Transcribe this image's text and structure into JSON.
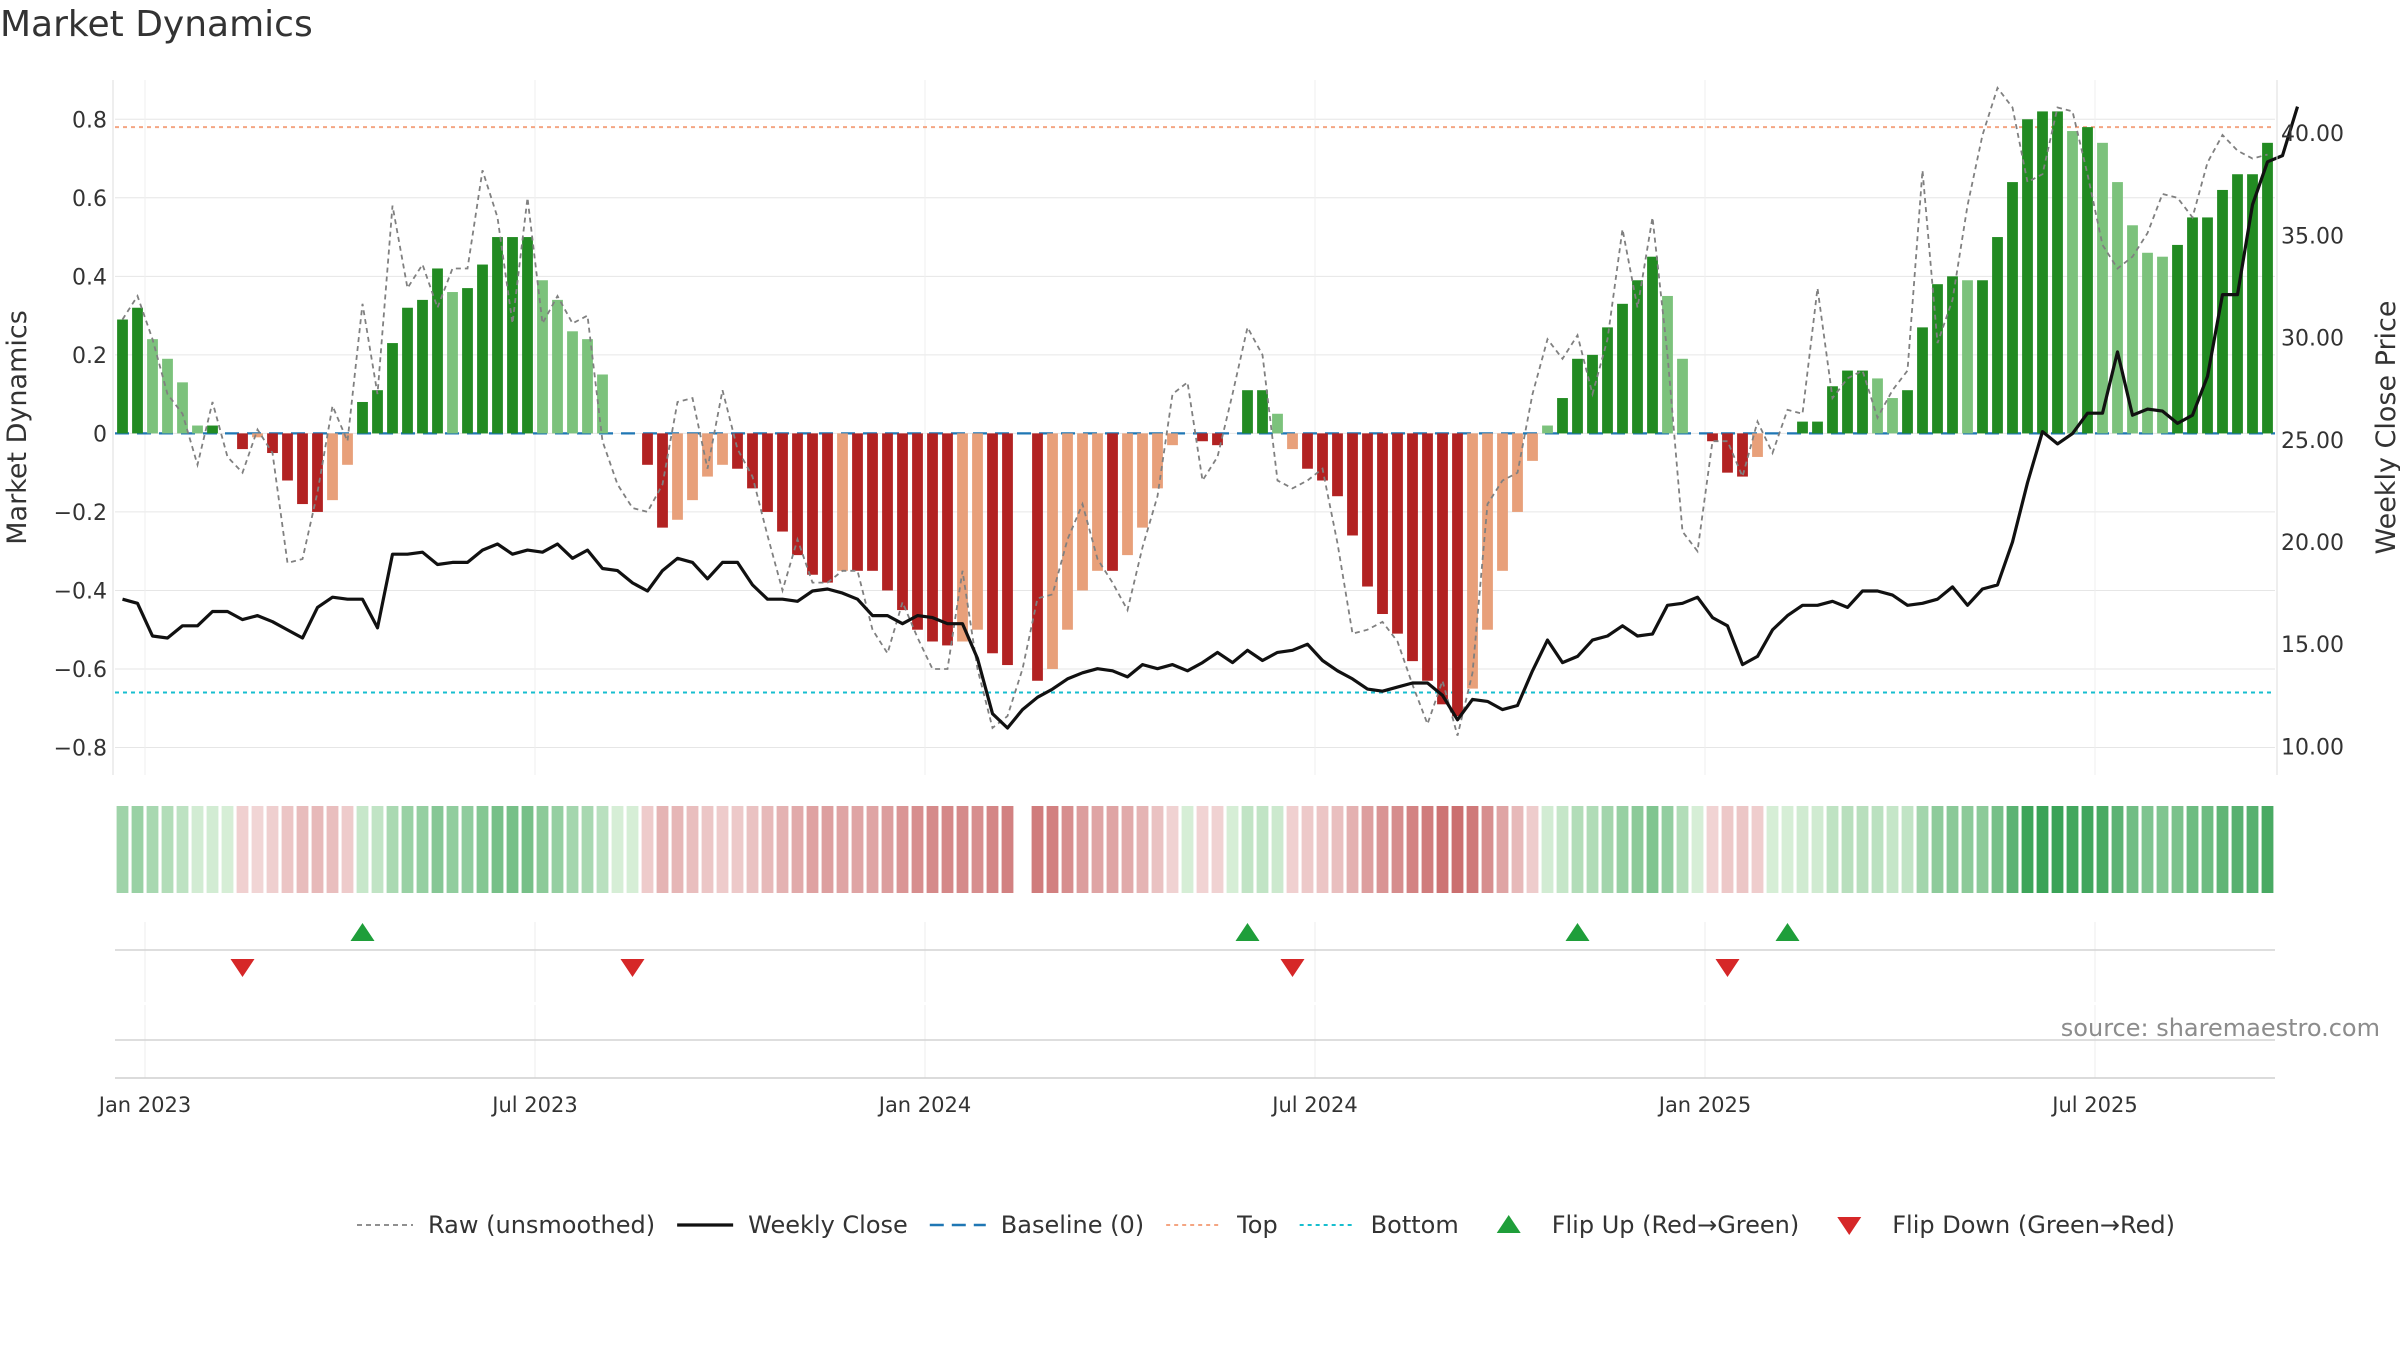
{
  "title": "Market Dynamics",
  "source": "source: sharemaestro.com",
  "colors": {
    "strong_up": "#228b22",
    "weak_up": "#7cc27c",
    "strong_down": "#b22222",
    "weak_down": "#e8a07a",
    "raw": "#808080",
    "close": "#111111",
    "baseline": "#1f77b4",
    "top": "#f4a582",
    "bottom": "#17becf",
    "flip_up": "#1f9e3a",
    "flip_down": "#d62728"
  },
  "chart_data": {
    "type": "bar",
    "title": "Market Dynamics",
    "ylabel": "Market Dynamics",
    "y2label": "Weekly Close Price",
    "ylim": [
      -0.87,
      0.9
    ],
    "y2lim": [
      8.6,
      42.6
    ],
    "yticks": [
      "0.8",
      "0.6",
      "0.4",
      "0.2",
      "0",
      "−0.2",
      "−0.4",
      "−0.6",
      "−0.8"
    ],
    "ytick_values": [
      0.8,
      0.6,
      0.4,
      0.2,
      0,
      -0.2,
      -0.4,
      -0.6,
      -0.8
    ],
    "y2ticks": [
      "40.00",
      "35.00",
      "30.00",
      "25.00",
      "20.00",
      "15.00",
      "10.00"
    ],
    "y2tick_values": [
      40,
      35,
      30,
      25,
      20,
      15,
      10
    ],
    "xticks": [
      "Jan 2023",
      "Jul 2023",
      "Jan 2024",
      "Jul 2024",
      "Jan 2025",
      "Jul 2025"
    ],
    "xtick_weeks": [
      2,
      28,
      54,
      80,
      106,
      132
    ],
    "x_range_weeks": [
      0,
      144
    ],
    "top_level": 0.78,
    "bottom_level": -0.66,
    "baseline": 0,
    "bar_shade": "darker bar = strong momentum, lighter bar = weakening momentum",
    "bars": [
      0.29,
      0.32,
      0.24,
      0.19,
      0.13,
      0.02,
      0.02,
      0,
      -0.04,
      -0.01,
      -0.05,
      -0.12,
      -0.18,
      -0.2,
      -0.17,
      -0.08,
      0.08,
      0.11,
      0.23,
      0.32,
      0.34,
      0.42,
      0.36,
      0.37,
      0.43,
      0.5,
      0.5,
      0.5,
      0.39,
      0.34,
      0.26,
      0.24,
      0.15,
      0,
      0,
      -0.08,
      -0.24,
      -0.22,
      -0.17,
      -0.11,
      -0.08,
      -0.09,
      -0.14,
      -0.2,
      -0.25,
      -0.31,
      -0.36,
      -0.38,
      -0.35,
      -0.35,
      -0.35,
      -0.4,
      -0.45,
      -0.5,
      -0.53,
      -0.54,
      -0.53,
      -0.5,
      -0.56,
      -0.59,
      0,
      -0.63,
      -0.6,
      -0.5,
      -0.4,
      -0.35,
      -0.35,
      -0.31,
      -0.24,
      -0.14,
      -0.03,
      0,
      -0.02,
      -0.03,
      0,
      0.11,
      0.11,
      0.05,
      -0.04,
      -0.09,
      -0.12,
      -0.16,
      -0.26,
      -0.39,
      -0.46,
      -0.51,
      -0.58,
      -0.63,
      -0.69,
      -0.72,
      -0.65,
      -0.5,
      -0.35,
      -0.2,
      -0.07,
      0.02,
      0.09,
      0.19,
      0.2,
      0.27,
      0.33,
      0.39,
      0.45,
      0.35,
      0.19,
      0,
      -0.02,
      -0.1,
      -0.11,
      -0.06,
      0,
      0,
      0.03,
      0.03,
      0.12,
      0.16,
      0.16,
      0.14,
      0.09,
      0.11,
      0.27,
      0.38,
      0.4,
      0.39,
      0.39,
      0.5,
      0.64,
      0.8,
      0.82,
      0.82,
      0.77,
      0.78,
      0.74,
      0.64,
      0.53,
      0.46,
      0.45,
      0.48,
      0.55,
      0.55,
      0.62,
      0.66,
      0.66,
      0.74
    ],
    "raw": [
      0.29,
      0.35,
      0.24,
      0.1,
      0.05,
      -0.08,
      0.08,
      -0.06,
      -0.1,
      0.01,
      -0.05,
      -0.33,
      -0.32,
      -0.15,
      0.07,
      -0.02,
      0.33,
      0.1,
      0.58,
      0.37,
      0.43,
      0.32,
      0.42,
      0.42,
      0.67,
      0.55,
      0.28,
      0.6,
      0.28,
      0.35,
      0.28,
      0.3,
      -0.02,
      -0.13,
      -0.19,
      -0.2,
      -0.13,
      0.08,
      0.09,
      -0.09,
      0.11,
      -0.04,
      -0.11,
      -0.26,
      -0.4,
      -0.27,
      -0.38,
      -0.38,
      -0.35,
      -0.35,
      -0.5,
      -0.56,
      -0.43,
      -0.52,
      -0.6,
      -0.6,
      -0.35,
      -0.6,
      -0.75,
      -0.72,
      -0.6,
      -0.42,
      -0.41,
      -0.27,
      -0.18,
      -0.32,
      -0.38,
      -0.45,
      -0.29,
      -0.16,
      0.1,
      0.13,
      -0.12,
      -0.06,
      0.1,
      0.27,
      0.2,
      -0.12,
      -0.14,
      -0.12,
      -0.09,
      -0.28,
      -0.51,
      -0.5,
      -0.48,
      -0.53,
      -0.64,
      -0.74,
      -0.63,
      -0.77,
      -0.61,
      -0.18,
      -0.12,
      -0.1,
      0.1,
      0.24,
      0.19,
      0.25,
      0.1,
      0.24,
      0.52,
      0.32,
      0.55,
      0.2,
      -0.25,
      -0.3,
      -0.02,
      -0.02,
      -0.11,
      0.03,
      -0.05,
      0.06,
      0.05,
      0.37,
      0.09,
      0.14,
      0.16,
      0.04,
      0.11,
      0.16,
      0.67,
      0.23,
      0.34,
      0.58,
      0.76,
      0.88,
      0.83,
      0.64,
      0.66,
      0.83,
      0.82,
      0.66,
      0.48,
      0.42,
      0.45,
      0.51,
      0.61,
      0.6,
      0.55,
      0.69,
      0.76,
      0.72,
      0.7,
      0.71
    ],
    "close": [
      17.2,
      17.0,
      15.4,
      15.3,
      15.9,
      15.9,
      16.6,
      16.6,
      16.2,
      16.4,
      16.1,
      15.7,
      15.3,
      16.8,
      17.3,
      17.2,
      17.2,
      15.8,
      19.4,
      19.4,
      19.5,
      18.9,
      19.0,
      19.0,
      19.6,
      19.9,
      19.4,
      19.6,
      19.5,
      19.9,
      19.2,
      19.6,
      18.7,
      18.6,
      18.0,
      17.6,
      18.6,
      19.2,
      19.0,
      18.2,
      19.0,
      19.0,
      17.9,
      17.2,
      17.2,
      17.1,
      17.6,
      17.7,
      17.5,
      17.2,
      16.4,
      16.4,
      16.0,
      16.4,
      16.3,
      16.0,
      16.0,
      14.3,
      11.6,
      10.9,
      11.8,
      12.4,
      12.8,
      13.3,
      13.6,
      13.8,
      13.7,
      13.4,
      14.0,
      13.8,
      14.0,
      13.7,
      14.1,
      14.6,
      14.1,
      14.7,
      14.2,
      14.6,
      14.7,
      15.0,
      14.2,
      13.7,
      13.3,
      12.8,
      12.7,
      12.9,
      13.1,
      13.1,
      12.5,
      11.3,
      12.3,
      12.2,
      11.8,
      12.0,
      13.7,
      15.2,
      14.1,
      14.4,
      15.2,
      15.4,
      15.9,
      15.4,
      15.5,
      16.9,
      17.0,
      17.3,
      16.3,
      15.9,
      14.0,
      14.4,
      15.7,
      16.4,
      16.9,
      16.9,
      17.1,
      16.8,
      17.6,
      17.6,
      17.4,
      16.9,
      17.0,
      17.2,
      17.8,
      16.9,
      17.7,
      17.9,
      20.0,
      22.9,
      25.4,
      24.8,
      25.3,
      26.3,
      26.3,
      29.3,
      26.2,
      26.5,
      26.4,
      25.8,
      26.2,
      28.1,
      32.1,
      32.1,
      36.5,
      38.6,
      38.9,
      41.3
    ],
    "heat_band": "momentum shading strip beneath the main panel, matches bar sign",
    "flips_up_weeks": [
      16,
      75,
      97,
      111
    ],
    "flips_down_weeks": [
      8,
      34,
      78,
      107
    ],
    "legend": [
      {
        "label": "Raw (unsmoothed)",
        "style": "dashed-gray"
      },
      {
        "label": "Weekly Close",
        "style": "solid-black"
      },
      {
        "label": "Baseline (0)",
        "style": "dashed-blue"
      },
      {
        "label": "Top",
        "style": "dotted-orange"
      },
      {
        "label": "Bottom",
        "style": "dotted-cyan"
      },
      {
        "label": "Flip Up (Red→Green)",
        "style": "triangle-up-green"
      },
      {
        "label": "Flip Down (Green→Red)",
        "style": "triangle-down-red"
      }
    ],
    "legend_position": "bottom-center"
  }
}
